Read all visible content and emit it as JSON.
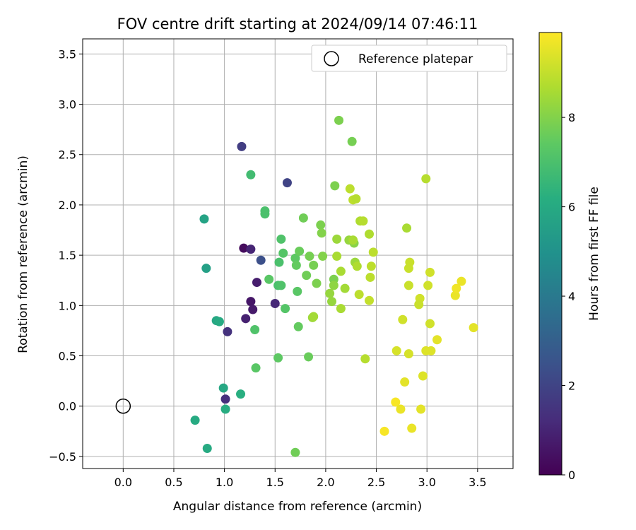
{
  "chart_data": {
    "type": "scatter",
    "title": "FOV centre drift starting at 2024/09/14 07:46:11",
    "xlabel": "Angular distance from reference (arcmin)",
    "ylabel": "Rotation from reference (arcmin)",
    "xlim": [
      -0.4,
      3.85
    ],
    "ylim": [
      -0.62,
      3.65
    ],
    "xticks": [
      "0.0",
      "0.5",
      "1.0",
      "1.5",
      "2.0",
      "2.5",
      "3.0",
      "3.5"
    ],
    "yticks": [
      "−0.5",
      "0.0",
      "0.5",
      "1.0",
      "1.5",
      "2.0",
      "2.5",
      "3.0",
      "3.5"
    ],
    "grid": true,
    "legend_position": "top-right",
    "legend": [
      {
        "label": "Reference platepar",
        "marker": "open-circle"
      }
    ],
    "reference_point": {
      "x": 0.0,
      "y": 0.0
    },
    "colorbar": {
      "label": "Hours from first FF file",
      "min": 0,
      "max": 9.9,
      "ticks": [
        "0",
        "2",
        "4",
        "6",
        "8"
      ],
      "colormap": "viridis"
    },
    "points": [
      {
        "x": 1.19,
        "y": 1.57,
        "h": 0.3
      },
      {
        "x": 1.26,
        "y": 1.56,
        "h": 1.0
      },
      {
        "x": 1.26,
        "y": 1.04,
        "h": 0.6
      },
      {
        "x": 1.28,
        "y": 0.96,
        "h": 0.7
      },
      {
        "x": 1.32,
        "y": 1.23,
        "h": 0.8
      },
      {
        "x": 1.21,
        "y": 0.87,
        "h": 0.9
      },
      {
        "x": 1.5,
        "y": 1.02,
        "h": 1.1
      },
      {
        "x": 1.03,
        "y": 0.74,
        "h": 1.4
      },
      {
        "x": 1.01,
        "y": 0.07,
        "h": 1.3
      },
      {
        "x": 1.17,
        "y": 2.58,
        "h": 1.8
      },
      {
        "x": 1.62,
        "y": 2.22,
        "h": 2.0
      },
      {
        "x": 1.36,
        "y": 1.45,
        "h": 2.4
      },
      {
        "x": 0.82,
        "y": 1.37,
        "h": 5.6
      },
      {
        "x": 0.8,
        "y": 1.86,
        "h": 5.7
      },
      {
        "x": 0.92,
        "y": 0.85,
        "h": 5.9
      },
      {
        "x": 0.95,
        "y": 0.84,
        "h": 6.0
      },
      {
        "x": 0.99,
        "y": 0.18,
        "h": 5.9
      },
      {
        "x": 1.01,
        "y": -0.03,
        "h": 6.1
      },
      {
        "x": 0.71,
        "y": -0.14,
        "h": 6.0
      },
      {
        "x": 0.83,
        "y": -0.42,
        "h": 6.0
      },
      {
        "x": 1.16,
        "y": 0.12,
        "h": 6.2
      },
      {
        "x": 1.26,
        "y": 2.3,
        "h": 6.8
      },
      {
        "x": 1.4,
        "y": 1.94,
        "h": 7.0
      },
      {
        "x": 1.4,
        "y": 1.91,
        "h": 7.0
      },
      {
        "x": 1.56,
        "y": 1.66,
        "h": 7.1
      },
      {
        "x": 1.58,
        "y": 1.52,
        "h": 7.2
      },
      {
        "x": 1.54,
        "y": 1.43,
        "h": 7.0
      },
      {
        "x": 1.44,
        "y": 1.26,
        "h": 7.3
      },
      {
        "x": 1.53,
        "y": 1.2,
        "h": 7.0
      },
      {
        "x": 1.56,
        "y": 1.2,
        "h": 7.1
      },
      {
        "x": 1.6,
        "y": 0.97,
        "h": 7.2
      },
      {
        "x": 1.3,
        "y": 0.76,
        "h": 7.1
      },
      {
        "x": 1.31,
        "y": 0.38,
        "h": 7.3
      },
      {
        "x": 1.53,
        "y": 0.48,
        "h": 7.4
      },
      {
        "x": 1.72,
        "y": 1.14,
        "h": 7.3
      },
      {
        "x": 1.73,
        "y": 0.79,
        "h": 7.5
      },
      {
        "x": 1.7,
        "y": 1.47,
        "h": 7.4
      },
      {
        "x": 1.71,
        "y": 1.4,
        "h": 7.5
      },
      {
        "x": 1.74,
        "y": 1.54,
        "h": 7.6
      },
      {
        "x": 1.78,
        "y": 1.87,
        "h": 7.7
      },
      {
        "x": 1.81,
        "y": 1.3,
        "h": 7.7
      },
      {
        "x": 1.84,
        "y": 1.49,
        "h": 7.8
      },
      {
        "x": 1.88,
        "y": 1.4,
        "h": 7.8
      },
      {
        "x": 1.91,
        "y": 1.22,
        "h": 7.9
      },
      {
        "x": 1.95,
        "y": 1.8,
        "h": 7.9
      },
      {
        "x": 1.96,
        "y": 1.72,
        "h": 8.0
      },
      {
        "x": 1.97,
        "y": 1.49,
        "h": 8.0
      },
      {
        "x": 1.83,
        "y": 0.49,
        "h": 7.6
      },
      {
        "x": 1.7,
        "y": -0.46,
        "h": 7.7
      },
      {
        "x": 2.09,
        "y": 2.19,
        "h": 7.9
      },
      {
        "x": 2.13,
        "y": 2.84,
        "h": 7.9
      },
      {
        "x": 2.26,
        "y": 2.63,
        "h": 7.8
      },
      {
        "x": 2.08,
        "y": 1.26,
        "h": 7.9
      },
      {
        "x": 2.08,
        "y": 1.2,
        "h": 8.2
      },
      {
        "x": 2.04,
        "y": 1.12,
        "h": 8.3
      },
      {
        "x": 2.06,
        "y": 1.04,
        "h": 8.3
      },
      {
        "x": 1.87,
        "y": 0.88,
        "h": 8.4
      },
      {
        "x": 1.88,
        "y": 0.89,
        "h": 8.5
      },
      {
        "x": 2.11,
        "y": 1.66,
        "h": 8.4
      },
      {
        "x": 2.11,
        "y": 1.49,
        "h": 8.6
      },
      {
        "x": 2.15,
        "y": 1.34,
        "h": 8.6
      },
      {
        "x": 2.19,
        "y": 1.17,
        "h": 8.5
      },
      {
        "x": 2.15,
        "y": 0.97,
        "h": 8.6
      },
      {
        "x": 2.23,
        "y": 1.65,
        "h": 8.3
      },
      {
        "x": 2.28,
        "y": 1.62,
        "h": 8.1
      },
      {
        "x": 2.27,
        "y": 1.65,
        "h": 8.6
      },
      {
        "x": 2.29,
        "y": 1.43,
        "h": 8.4
      },
      {
        "x": 2.31,
        "y": 1.39,
        "h": 8.7
      },
      {
        "x": 2.24,
        "y": 2.16,
        "h": 8.9
      },
      {
        "x": 2.27,
        "y": 2.05,
        "h": 8.9
      },
      {
        "x": 2.3,
        "y": 2.06,
        "h": 8.8
      },
      {
        "x": 2.34,
        "y": 1.84,
        "h": 8.7
      },
      {
        "x": 2.37,
        "y": 1.84,
        "h": 8.8
      },
      {
        "x": 2.43,
        "y": 1.71,
        "h": 8.7
      },
      {
        "x": 2.47,
        "y": 1.53,
        "h": 8.9
      },
      {
        "x": 2.45,
        "y": 1.39,
        "h": 8.9
      },
      {
        "x": 2.44,
        "y": 1.28,
        "h": 8.9
      },
      {
        "x": 2.33,
        "y": 1.11,
        "h": 8.9
      },
      {
        "x": 2.43,
        "y": 1.05,
        "h": 9.0
      },
      {
        "x": 2.39,
        "y": 0.47,
        "h": 8.8
      },
      {
        "x": 2.99,
        "y": 2.26,
        "h": 8.8
      },
      {
        "x": 2.8,
        "y": 1.77,
        "h": 8.6
      },
      {
        "x": 2.83,
        "y": 1.43,
        "h": 9.1
      },
      {
        "x": 2.82,
        "y": 1.37,
        "h": 9.1
      },
      {
        "x": 2.82,
        "y": 1.2,
        "h": 9.1
      },
      {
        "x": 2.93,
        "y": 1.07,
        "h": 9.2
      },
      {
        "x": 2.92,
        "y": 1.01,
        "h": 9.1
      },
      {
        "x": 3.01,
        "y": 1.2,
        "h": 9.2
      },
      {
        "x": 3.03,
        "y": 1.33,
        "h": 9.2
      },
      {
        "x": 3.03,
        "y": 0.82,
        "h": 9.2
      },
      {
        "x": 2.76,
        "y": 0.86,
        "h": 9.2
      },
      {
        "x": 2.7,
        "y": 0.55,
        "h": 9.3
      },
      {
        "x": 2.82,
        "y": 0.52,
        "h": 9.3
      },
      {
        "x": 2.99,
        "y": 0.55,
        "h": 9.4
      },
      {
        "x": 3.04,
        "y": 0.55,
        "h": 9.4
      },
      {
        "x": 3.1,
        "y": 0.66,
        "h": 9.5
      },
      {
        "x": 2.96,
        "y": 0.3,
        "h": 9.4
      },
      {
        "x": 2.78,
        "y": 0.24,
        "h": 9.5
      },
      {
        "x": 2.69,
        "y": 0.04,
        "h": 9.8
      },
      {
        "x": 2.74,
        "y": -0.03,
        "h": 9.6
      },
      {
        "x": 2.94,
        "y": -0.03,
        "h": 9.5
      },
      {
        "x": 2.85,
        "y": -0.22,
        "h": 9.6
      },
      {
        "x": 2.58,
        "y": -0.25,
        "h": 9.8
      },
      {
        "x": 3.28,
        "y": 1.1,
        "h": 9.6
      },
      {
        "x": 3.29,
        "y": 1.17,
        "h": 9.7
      },
      {
        "x": 3.34,
        "y": 1.24,
        "h": 9.6
      },
      {
        "x": 3.46,
        "y": 0.78,
        "h": 9.5
      }
    ]
  }
}
